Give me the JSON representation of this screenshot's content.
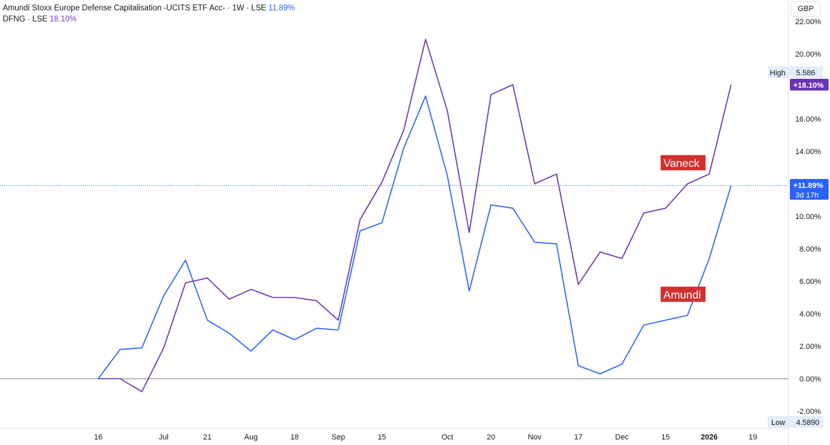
{
  "legend": {
    "series1_label": "Amundi Stoxx Europe Defense Capitalisation -UCITS ETF Acc- · 1W · LSE",
    "series1_value": "11.89%",
    "series2_label": "DFNG · LSE",
    "series2_value": "18.10%"
  },
  "currency": "GBP",
  "colors": {
    "amundi": "#2962ff",
    "vaneck": "#6a35b3",
    "annotation": "#d32f2f"
  },
  "chart_data": {
    "type": "line",
    "yunit": "%",
    "ylim": [
      -2.5,
      22.2
    ],
    "y_ticks": [
      "22.00%",
      "20.00%",
      "18.00%",
      "16.00%",
      "14.00%",
      "12.00%",
      "10.00%",
      "8.00%",
      "6.00%",
      "4.00%",
      "2.00%",
      "0.00%",
      "-2.00%"
    ],
    "y_tick_values": [
      22,
      20,
      18,
      16,
      14,
      12,
      10,
      8,
      6,
      4,
      2,
      0,
      -2
    ],
    "x_ticks": [
      "16",
      "Jul",
      "21",
      "Aug",
      "18",
      "Sep",
      "15",
      "Oct",
      "20",
      "Nov",
      "17",
      "Dec",
      "15",
      "2026",
      "19"
    ],
    "x_tick_index": [
      0,
      3,
      5,
      7,
      9,
      11,
      13,
      16,
      18,
      20,
      22,
      24,
      26,
      28,
      30
    ],
    "series": [
      {
        "name": "Amundi Stoxx Europe Defense Capitalisation -UCITS ETF Acc-",
        "values": [
          0.0,
          1.8,
          1.9,
          5.1,
          7.3,
          3.6,
          2.8,
          1.7,
          3.0,
          2.4,
          3.1,
          3.0,
          9.1,
          9.6,
          14.2,
          17.4,
          12.5,
          5.4,
          10.7,
          10.5,
          8.4,
          8.3,
          0.8,
          0.3,
          0.9,
          3.3,
          3.6,
          3.9,
          7.4,
          11.89
        ]
      },
      {
        "name": "DFNG",
        "values": [
          0.0,
          0.0,
          -0.8,
          1.9,
          5.9,
          6.2,
          4.9,
          5.5,
          5.0,
          5.0,
          4.8,
          3.6,
          9.8,
          12.1,
          15.3,
          20.9,
          16.5,
          9.0,
          17.5,
          18.1,
          12.0,
          12.6,
          5.8,
          7.8,
          7.4,
          10.2,
          10.5,
          12.0,
          12.6,
          18.1
        ]
      }
    ],
    "annotations": [
      {
        "text": "Vaneck",
        "x_index": 25.9,
        "y": 13.3
      },
      {
        "text": "Amundi",
        "x_index": 25.9,
        "y": 5.2
      }
    ],
    "price_labels": {
      "high_label": "High",
      "high_value": "5.586",
      "low_label": "Low",
      "low_value": "4.5890",
      "vaneck_last": "+18.10%",
      "amundi_last": "+11.89%",
      "countdown": "3d 17h"
    }
  }
}
